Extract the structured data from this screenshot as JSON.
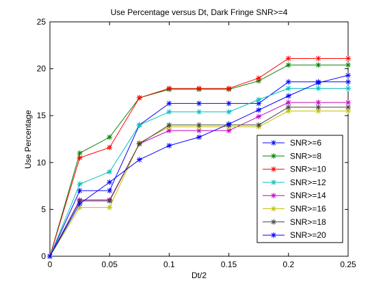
{
  "chart_data": {
    "type": "line",
    "title": "Use Percentage versus Dt, Dark Fringe SNR>=4",
    "xlabel": "Dt/2",
    "ylabel": "Use Percentage",
    "xlim": [
      0,
      0.25
    ],
    "ylim": [
      0,
      25
    ],
    "xticks": [
      "0",
      "0.05",
      "0.1",
      "0.15",
      "0.2",
      "0.25"
    ],
    "yticks": [
      "0",
      "5",
      "10",
      "15",
      "20",
      "25"
    ],
    "x": [
      0,
      0.025,
      0.05,
      0.075,
      0.1,
      0.125,
      0.15,
      0.175,
      0.2,
      0.225,
      0.25
    ],
    "legend_position": "lower-right",
    "grid": false,
    "series": [
      {
        "name": "SNR>=6",
        "color": "#0000ff",
        "values": [
          0,
          7.0,
          7.0,
          14.0,
          16.3,
          16.3,
          16.3,
          16.3,
          18.6,
          18.6,
          18.6
        ]
      },
      {
        "name": "SNR>=8",
        "color": "#008000",
        "values": [
          0,
          11.0,
          12.7,
          16.9,
          17.8,
          17.8,
          17.8,
          18.7,
          20.4,
          20.4,
          20.4
        ]
      },
      {
        "name": "SNR>=10",
        "color": "#ff0000",
        "values": [
          0,
          10.5,
          11.6,
          16.9,
          17.9,
          17.9,
          17.9,
          19.0,
          21.1,
          21.1,
          21.1
        ]
      },
      {
        "name": "SNR>=12",
        "color": "#00bfbf",
        "values": [
          0,
          7.7,
          9.0,
          14.0,
          15.4,
          15.4,
          15.4,
          16.7,
          17.9,
          17.9,
          17.9
        ]
      },
      {
        "name": "SNR>=14",
        "color": "#bf00bf",
        "values": [
          0,
          6.0,
          6.0,
          12.0,
          13.4,
          13.4,
          13.4,
          14.9,
          16.4,
          16.4,
          16.4
        ]
      },
      {
        "name": "SNR>=16",
        "color": "#bfbf00",
        "values": [
          0,
          5.2,
          5.2,
          12.1,
          13.8,
          13.8,
          13.8,
          13.8,
          15.5,
          15.5,
          15.5
        ]
      },
      {
        "name": "SNR>=18",
        "color": "#404040",
        "values": [
          0,
          5.9,
          5.9,
          12.0,
          14.0,
          14.0,
          14.0,
          14.0,
          15.9,
          15.9,
          15.9
        ]
      },
      {
        "name": "SNR>=20",
        "color": "#0000ff",
        "values": [
          0,
          5.6,
          7.9,
          10.3,
          11.8,
          12.7,
          14.1,
          15.6,
          17.1,
          18.5,
          19.3
        ]
      }
    ]
  }
}
